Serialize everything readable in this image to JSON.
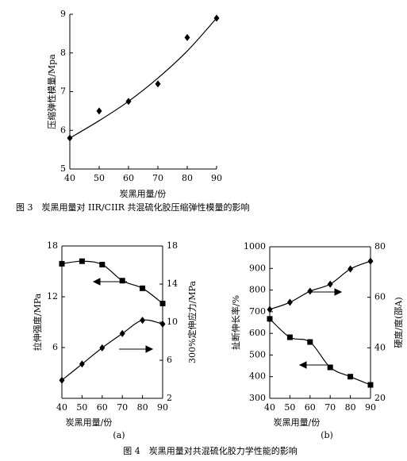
{
  "chart_data": [
    {
      "type": "line",
      "xlabel": "炭黑用量/份",
      "ylabel": "压缩弹性模量/Mpa",
      "x": [
        40,
        50,
        60,
        70,
        80,
        90
      ],
      "xlim": [
        40,
        90
      ],
      "xticks": [
        40,
        50,
        60,
        70,
        80,
        90
      ],
      "ylim": [
        5,
        9
      ],
      "yticks": [
        5,
        6,
        7,
        8,
        9
      ],
      "series": [
        {
          "marker": "diamond",
          "color": "#000000",
          "values": [
            5.8,
            6.5,
            6.75,
            7.2,
            8.4,
            8.9
          ]
        },
        {
          "marker": "none",
          "color": "#000000",
          "values": [
            5.8,
            6.25,
            6.75,
            7.35,
            8.05,
            8.9
          ]
        }
      ]
    },
    {
      "type": "line",
      "label": "(a)",
      "xlabel": "炭黑用量/份",
      "ylabel": "拉伸强度/MPa",
      "y2label": "300%定伸应力/MPa",
      "x": [
        40,
        50,
        60,
        70,
        80,
        90
      ],
      "xlim": [
        40,
        90
      ],
      "xticks": [
        40,
        50,
        60,
        70,
        80,
        90
      ],
      "ylim": [
        0,
        18
      ],
      "yticks": [
        6,
        12,
        18
      ],
      "y2lim": [
        2,
        18
      ],
      "y2ticks": [
        2,
        6,
        10,
        14,
        18
      ],
      "series": [
        {
          "marker": "square",
          "color": "#000000",
          "values": [
            15.9,
            16.2,
            15.8,
            13.9,
            13.0,
            11.2
          ]
        },
        {
          "marker": "diamond",
          "color": "#000000",
          "axis": "y2",
          "values": [
            3.9,
            5.6,
            7.3,
            8.8,
            10.2,
            9.8
          ]
        }
      ]
    },
    {
      "type": "line",
      "label": "(b)",
      "xlabel": "炭黑用量/份",
      "ylabel": "扯断伸长率/%",
      "y2label": "硬度/度(邵A)",
      "x": [
        40,
        50,
        60,
        70,
        80,
        90
      ],
      "xlim": [
        40,
        90
      ],
      "xticks": [
        40,
        50,
        60,
        70,
        80,
        90
      ],
      "ylim": [
        300,
        1000
      ],
      "yticks": [
        300,
        400,
        500,
        600,
        700,
        800,
        900,
        1000
      ],
      "y2lim": [
        20,
        80
      ],
      "y2ticks": [
        20,
        40,
        60,
        80
      ],
      "series": [
        {
          "marker": "square",
          "color": "#000000",
          "values": [
            667,
            582,
            560,
            443,
            400,
            362
          ]
        },
        {
          "marker": "diamond",
          "color": "#000000",
          "axis": "y2",
          "values": [
            55.2,
            58.0,
            62.4,
            65.2,
            71.2,
            74.3
          ]
        }
      ]
    }
  ],
  "captions": [
    "图 3　炭黑用量对 IIR/CIIR 共混硫化胶压缩弹性模量的影响",
    "图 4　炭黑用量对共混硫化胶力学性能的影响"
  ]
}
